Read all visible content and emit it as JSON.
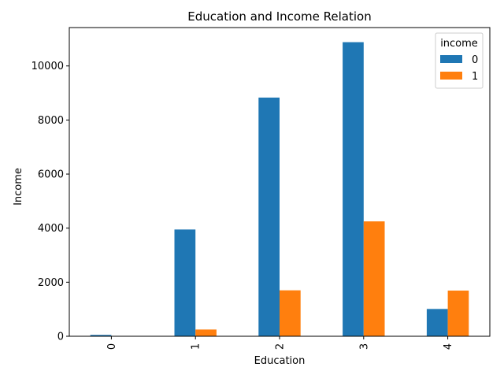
{
  "chart_data": {
    "type": "bar",
    "title": "Education and Income Relation",
    "xlabel": "Education",
    "ylabel": "Income",
    "categories": [
      "0",
      "1",
      "2",
      "3",
      "4"
    ],
    "series": [
      {
        "name": "0",
        "color": "#1f77b4",
        "values": [
          50,
          3950,
          8830,
          10880,
          1010
        ]
      },
      {
        "name": "1",
        "color": "#ff7f0e",
        "values": [
          0,
          250,
          1700,
          4250,
          1690
        ]
      }
    ],
    "ylim": [
      0,
      11420
    ],
    "yticks": [
      0,
      2000,
      4000,
      6000,
      8000,
      10000
    ],
    "grid": false,
    "legend": {
      "title": "income",
      "placement": "top-right"
    }
  }
}
